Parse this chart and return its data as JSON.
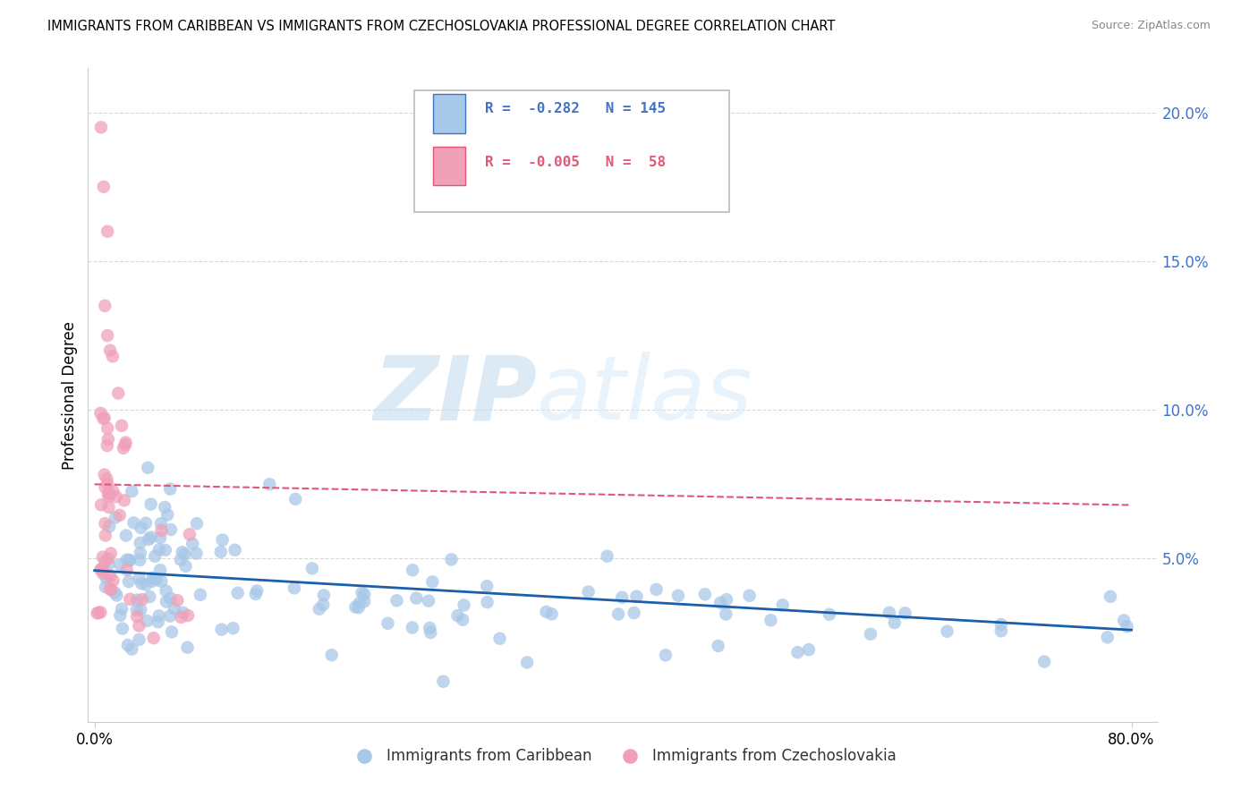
{
  "title": "IMMIGRANTS FROM CARIBBEAN VS IMMIGRANTS FROM CZECHOSLOVAKIA PROFESSIONAL DEGREE CORRELATION CHART",
  "source": "Source: ZipAtlas.com",
  "ylabel": "Professional Degree",
  "right_yticks": [
    "5.0%",
    "10.0%",
    "15.0%",
    "20.0%"
  ],
  "right_ytick_vals": [
    0.05,
    0.1,
    0.15,
    0.2
  ],
  "xlim": [
    -0.005,
    0.82
  ],
  "ylim": [
    -0.005,
    0.215
  ],
  "series1_name": "Immigrants from Caribbean",
  "series2_name": "Immigrants from Czechoslovakia",
  "color_blue": "#a8c8e8",
  "color_pink": "#f0a0b8",
  "color_line_blue": "#1a5fa8",
  "color_line_pink": "#e05878",
  "blue_trend_start": 0.046,
  "blue_trend_end": 0.026,
  "pink_trend_start": 0.075,
  "pink_trend_end": 0.068,
  "legend_R1": "-0.282",
  "legend_N1": "145",
  "legend_R2": "-0.005",
  "legend_N2": "58",
  "legend_color1": "#4472c4",
  "legend_color2": "#e05878",
  "watermark1": "ZIP",
  "watermark2": "atlas",
  "grid_color": "#d8d8d8",
  "spine_color": "#cccccc"
}
